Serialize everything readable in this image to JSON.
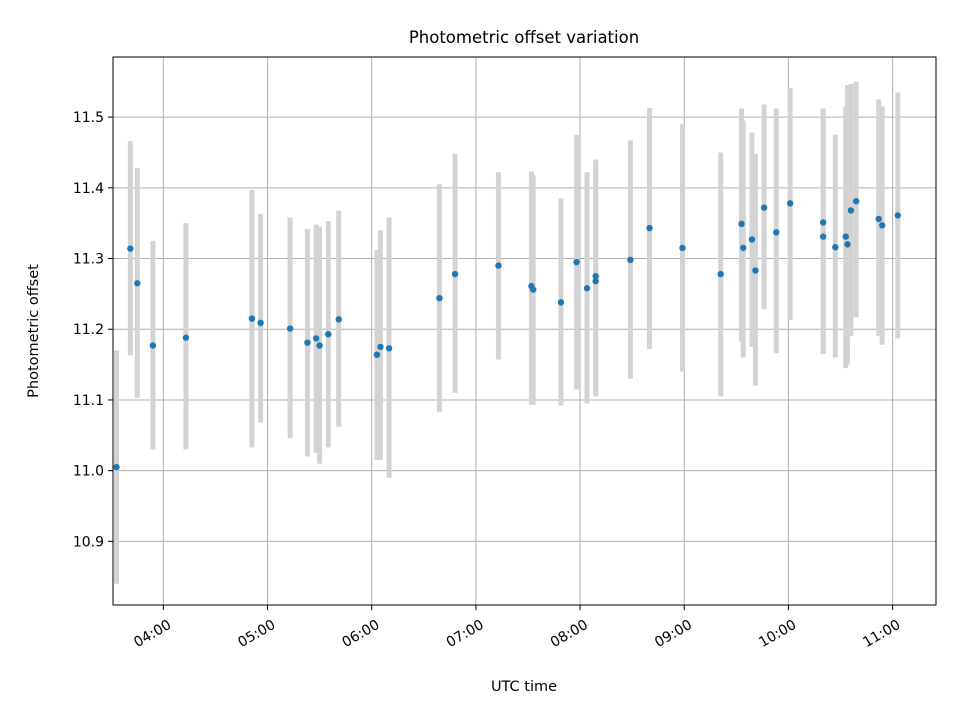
{
  "chart_data": {
    "type": "scatter",
    "title": "Photometric offset variation",
    "xlabel": "UTC time",
    "ylabel": "Photometric offset",
    "grid": true,
    "x_ticks": [
      "04:00",
      "05:00",
      "06:00",
      "07:00",
      "08:00",
      "09:00",
      "10:00",
      "11:00"
    ],
    "y_ticks": [
      "10.9",
      "11.0",
      "11.1",
      "11.2",
      "11.3",
      "11.4",
      "11.5"
    ],
    "xlim": [
      "03:31",
      "11:25"
    ],
    "ylim": [
      10.81,
      11.585
    ],
    "colors": {
      "point": "#1f77b4",
      "errorbar": "#d3d3d3",
      "grid": "#b0b0b0"
    },
    "series": [
      {
        "x": [
          "03:33",
          "03:41",
          "03:45",
          "03:54",
          "04:13",
          "04:51",
          "04:56",
          "05:13",
          "05:23",
          "05:28",
          "05:30",
          "05:35",
          "05:41",
          "06:03",
          "06:05",
          "06:10",
          "06:39",
          "06:48",
          "07:13",
          "07:32",
          "07:33",
          "07:49",
          "07:58",
          "08:04",
          "08:09",
          "08:09",
          "08:29",
          "08:40",
          "08:59",
          "09:21",
          "09:33",
          "09:34",
          "09:39",
          "09:41",
          "09:46",
          "09:53",
          "10:01",
          "10:20",
          "10:20",
          "10:27",
          "10:33",
          "10:34",
          "10:36",
          "10:39",
          "10:52",
          "10:54",
          "11:03"
        ],
        "y": [
          11.005,
          11.314,
          11.265,
          11.177,
          11.188,
          11.215,
          11.209,
          11.201,
          11.181,
          11.187,
          11.177,
          11.193,
          11.214,
          11.164,
          11.175,
          11.173,
          11.244,
          11.278,
          11.29,
          11.261,
          11.256,
          11.238,
          11.295,
          11.258,
          11.268,
          11.275,
          11.298,
          11.343,
          11.315,
          11.278,
          11.349,
          11.315,
          11.327,
          11.283,
          11.372,
          11.337,
          11.378,
          11.351,
          11.331,
          11.316,
          11.331,
          11.32,
          11.368,
          11.381,
          11.356,
          11.347,
          11.361
        ],
        "err_low": [
          10.84,
          11.163,
          11.103,
          11.03,
          11.03,
          11.033,
          11.068,
          11.046,
          11.02,
          11.025,
          11.01,
          11.033,
          11.062,
          11.015,
          11.015,
          10.99,
          11.083,
          11.11,
          11.157,
          11.093,
          11.093,
          11.092,
          11.115,
          11.095,
          11.105,
          11.105,
          11.13,
          11.172,
          11.14,
          11.105,
          11.183,
          11.16,
          11.175,
          11.12,
          11.228,
          11.166,
          11.213,
          11.165,
          11.165,
          11.16,
          11.145,
          11.15,
          11.19,
          11.217,
          11.19,
          11.178,
          11.187
        ],
        "err_high": [
          11.17,
          11.466,
          11.428,
          11.325,
          11.35,
          11.397,
          11.363,
          11.358,
          11.342,
          11.348,
          11.345,
          11.353,
          11.368,
          11.312,
          11.34,
          11.358,
          11.405,
          11.448,
          11.422,
          11.423,
          11.418,
          11.385,
          11.475,
          11.422,
          11.432,
          11.44,
          11.467,
          11.513,
          11.49,
          11.45,
          11.512,
          11.495,
          11.478,
          11.448,
          11.518,
          11.512,
          11.541,
          11.512,
          11.512,
          11.475,
          11.515,
          11.545,
          11.547,
          11.55,
          11.525,
          11.515,
          11.535
        ]
      }
    ]
  }
}
